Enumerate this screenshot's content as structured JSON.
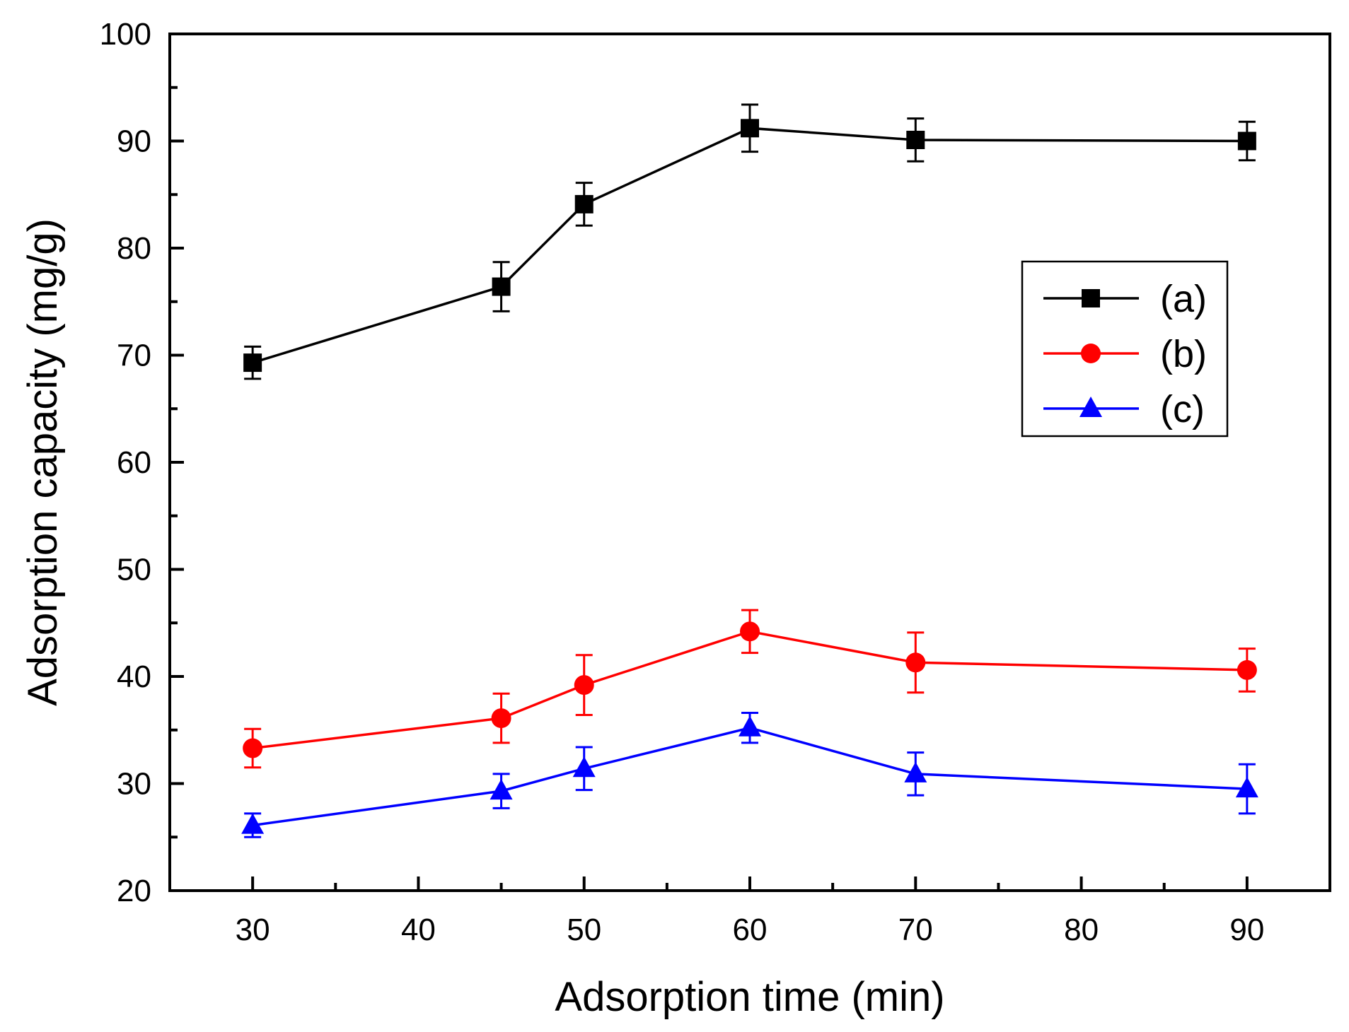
{
  "chart_data": {
    "type": "line",
    "title": "",
    "xlabel": "Adsorption time (min)",
    "ylabel": "Adsorption capacity (mg/g)",
    "xlim": [
      25,
      95
    ],
    "ylim": [
      20,
      100
    ],
    "xticks": [
      30,
      40,
      50,
      60,
      70,
      80,
      90
    ],
    "yticks": [
      20,
      30,
      40,
      50,
      60,
      70,
      80,
      90,
      100
    ],
    "x": [
      30,
      45,
      50,
      60,
      70,
      90
    ],
    "legend_position": "upper-right",
    "series": [
      {
        "name": "(a)",
        "color": "#000000",
        "marker": "square",
        "values": [
          69.3,
          76.4,
          84.1,
          91.2,
          90.1,
          90.0
        ],
        "errors": [
          1.5,
          2.3,
          2.0,
          2.2,
          2.0,
          1.8
        ]
      },
      {
        "name": "(b)",
        "color": "#ff0000",
        "marker": "circle",
        "values": [
          33.3,
          36.1,
          39.2,
          44.2,
          41.3,
          40.6
        ],
        "errors": [
          1.8,
          2.3,
          2.8,
          2.0,
          2.8,
          2.0
        ]
      },
      {
        "name": "(c)",
        "color": "#0000ff",
        "marker": "triangle",
        "values": [
          26.1,
          29.3,
          31.4,
          35.2,
          30.9,
          29.5
        ],
        "errors": [
          1.1,
          1.6,
          2.0,
          1.4,
          2.0,
          2.3
        ]
      }
    ]
  }
}
